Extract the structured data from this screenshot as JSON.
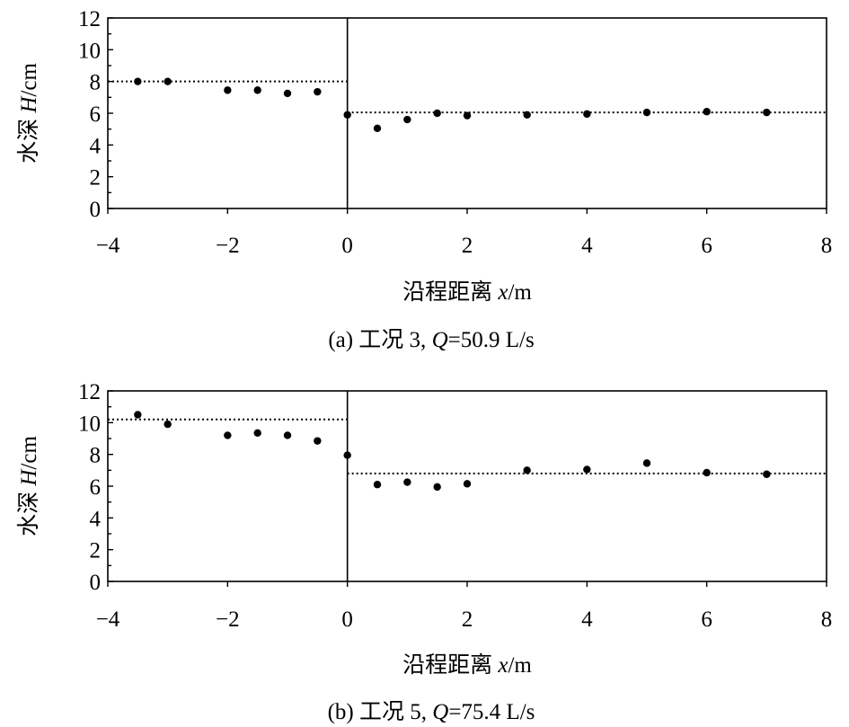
{
  "chart_data": [
    {
      "type": "scatter",
      "panel": "a",
      "xlabel_prefix": "沿程距离 ",
      "xlabel_var": "x",
      "xlabel_suffix": "/m",
      "ylabel_prefix": "水深 ",
      "ylabel_var": "H",
      "ylabel_suffix": "/cm",
      "caption_prefix": "(a) 工况 3, ",
      "caption_var": "Q",
      "caption_suffix": "=50.9 L/s",
      "xlim": [
        -4,
        8
      ],
      "ylim": [
        0,
        12
      ],
      "x_ticks": [
        -4,
        -2,
        0,
        2,
        4,
        6,
        8
      ],
      "x_tick_labels": [
        "−4",
        "−2",
        "0",
        "2",
        "4",
        "6",
        "8"
      ],
      "y_ticks": [
        0,
        2,
        4,
        6,
        8,
        10,
        12
      ],
      "y_tick_labels": [
        "0",
        "2",
        "4",
        "6",
        "8",
        "10",
        "12"
      ],
      "divider_x": 0,
      "reference_lines": [
        {
          "x": [
            -4,
            0
          ],
          "y": 8.0,
          "style": "dotted"
        },
        {
          "x": [
            0,
            8
          ],
          "y": 6.05,
          "style": "dotted"
        }
      ],
      "points": [
        {
          "x": -3.5,
          "y": 8.0
        },
        {
          "x": -3.0,
          "y": 8.0
        },
        {
          "x": -2.0,
          "y": 7.45
        },
        {
          "x": -1.5,
          "y": 7.45
        },
        {
          "x": -1.0,
          "y": 7.25
        },
        {
          "x": -0.5,
          "y": 7.35
        },
        {
          "x": 0.0,
          "y": 5.9
        },
        {
          "x": 0.5,
          "y": 5.05
        },
        {
          "x": 1.0,
          "y": 5.6
        },
        {
          "x": 1.5,
          "y": 6.0
        },
        {
          "x": 2.0,
          "y": 5.85
        },
        {
          "x": 3.0,
          "y": 5.9
        },
        {
          "x": 4.0,
          "y": 5.95
        },
        {
          "x": 5.0,
          "y": 6.05
        },
        {
          "x": 6.0,
          "y": 6.1
        },
        {
          "x": 7.0,
          "y": 6.05
        }
      ],
      "grid": false
    },
    {
      "type": "scatter",
      "panel": "b",
      "xlabel_prefix": "沿程距离 ",
      "xlabel_var": "x",
      "xlabel_suffix": "/m",
      "ylabel_prefix": "水深 ",
      "ylabel_var": "H",
      "ylabel_suffix": "/cm",
      "caption_prefix": "(b) 工况 5, ",
      "caption_var": "Q",
      "caption_suffix": "=75.4 L/s",
      "xlim": [
        -4,
        8
      ],
      "ylim": [
        0,
        12
      ],
      "x_ticks": [
        -4,
        -2,
        0,
        2,
        4,
        6,
        8
      ],
      "x_tick_labels": [
        "−4",
        "−2",
        "0",
        "2",
        "4",
        "6",
        "8"
      ],
      "y_ticks": [
        0,
        2,
        4,
        6,
        8,
        10,
        12
      ],
      "y_tick_labels": [
        "0",
        "2",
        "4",
        "6",
        "8",
        "10",
        "12"
      ],
      "divider_x": 0,
      "reference_lines": [
        {
          "x": [
            -4,
            0
          ],
          "y": 10.2,
          "style": "dotted"
        },
        {
          "x": [
            0,
            8
          ],
          "y": 6.8,
          "style": "dotted"
        }
      ],
      "points": [
        {
          "x": -3.5,
          "y": 10.5
        },
        {
          "x": -3.0,
          "y": 9.9
        },
        {
          "x": -2.0,
          "y": 9.2
        },
        {
          "x": -1.5,
          "y": 9.35
        },
        {
          "x": -1.0,
          "y": 9.2
        },
        {
          "x": -0.5,
          "y": 8.85
        },
        {
          "x": 0.0,
          "y": 7.95
        },
        {
          "x": 0.5,
          "y": 6.1
        },
        {
          "x": 1.0,
          "y": 6.25
        },
        {
          "x": 1.5,
          "y": 5.95
        },
        {
          "x": 2.0,
          "y": 6.15
        },
        {
          "x": 3.0,
          "y": 7.0
        },
        {
          "x": 4.0,
          "y": 7.05
        },
        {
          "x": 5.0,
          "y": 7.45
        },
        {
          "x": 6.0,
          "y": 6.85
        },
        {
          "x": 7.0,
          "y": 6.75
        }
      ],
      "grid": false
    }
  ]
}
